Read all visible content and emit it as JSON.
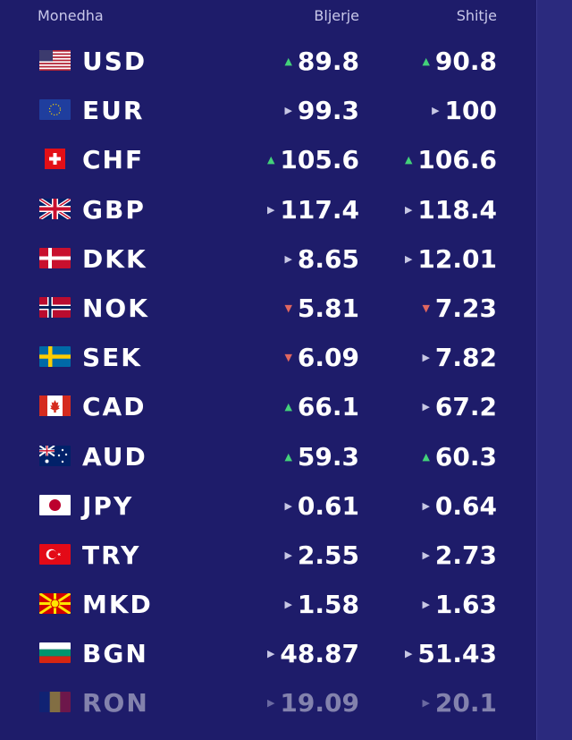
{
  "header": {
    "currency": "Monedha",
    "buy": "Bljerje",
    "sell": "Shitje"
  },
  "rows": [
    {
      "code": "USD",
      "flag": "us-flag-icon",
      "buy": "89.8",
      "buy_trend": "up",
      "sell": "90.8",
      "sell_trend": "up"
    },
    {
      "code": "EUR",
      "flag": "eu-flag-icon",
      "buy": "99.3",
      "buy_trend": "flat",
      "sell": "100",
      "sell_trend": "flat"
    },
    {
      "code": "CHF",
      "flag": "ch-flag-icon",
      "buy": "105.6",
      "buy_trend": "up",
      "sell": "106.6",
      "sell_trend": "up"
    },
    {
      "code": "GBP",
      "flag": "gb-flag-icon",
      "buy": "117.4",
      "buy_trend": "flat",
      "sell": "118.4",
      "sell_trend": "flat"
    },
    {
      "code": "DKK",
      "flag": "dk-flag-icon",
      "buy": "8.65",
      "buy_trend": "flat",
      "sell": "12.01",
      "sell_trend": "flat"
    },
    {
      "code": "NOK",
      "flag": "no-flag-icon",
      "buy": "5.81",
      "buy_trend": "down",
      "sell": "7.23",
      "sell_trend": "down"
    },
    {
      "code": "SEK",
      "flag": "se-flag-icon",
      "buy": "6.09",
      "buy_trend": "down",
      "sell": "7.82",
      "sell_trend": "flat"
    },
    {
      "code": "CAD",
      "flag": "ca-flag-icon",
      "buy": "66.1",
      "buy_trend": "up",
      "sell": "67.2",
      "sell_trend": "flat"
    },
    {
      "code": "AUD",
      "flag": "au-flag-icon",
      "buy": "59.3",
      "buy_trend": "up",
      "sell": "60.3",
      "sell_trend": "up"
    },
    {
      "code": "JPY",
      "flag": "jp-flag-icon",
      "buy": "0.61",
      "buy_trend": "flat",
      "sell": "0.64",
      "sell_trend": "flat"
    },
    {
      "code": "TRY",
      "flag": "tr-flag-icon",
      "buy": "2.55",
      "buy_trend": "flat",
      "sell": "2.73",
      "sell_trend": "flat"
    },
    {
      "code": "MKD",
      "flag": "mk-flag-icon",
      "buy": "1.58",
      "buy_trend": "flat",
      "sell": "1.63",
      "sell_trend": "flat"
    },
    {
      "code": "BGN",
      "flag": "bg-flag-icon",
      "buy": "48.87",
      "buy_trend": "flat",
      "sell": "51.43",
      "sell_trend": "flat"
    },
    {
      "code": "RON",
      "flag": "ro-flag-icon",
      "buy": "19.09",
      "buy_trend": "flat",
      "sell": "20.1",
      "sell_trend": "flat"
    }
  ],
  "colors": {
    "background": "#1e1c6a",
    "up": "#43d17a",
    "down": "#e0665f",
    "flat": "#c7c7e4",
    "text": "#ffffff"
  }
}
